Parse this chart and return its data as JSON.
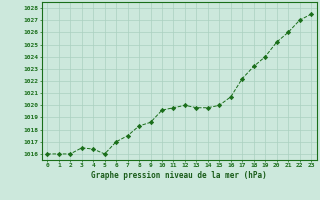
{
  "x": [
    0,
    1,
    2,
    3,
    4,
    5,
    6,
    7,
    8,
    9,
    10,
    11,
    12,
    13,
    14,
    15,
    16,
    17,
    18,
    19,
    20,
    21,
    22,
    23
  ],
  "y": [
    1016.0,
    1016.0,
    1016.0,
    1016.5,
    1016.4,
    1016.0,
    1017.0,
    1017.5,
    1018.3,
    1018.6,
    1019.6,
    1019.8,
    1020.0,
    1019.8,
    1019.8,
    1020.0,
    1020.7,
    1022.2,
    1023.2,
    1024.0,
    1025.2,
    1026.0,
    1027.0,
    1027.5
  ],
  "line_color": "#1a6e1a",
  "marker": "D",
  "marker_size": 2.2,
  "bg_color": "#cce8dc",
  "grid_color": "#aad0c0",
  "tick_label_color": "#1a6e1a",
  "title": "Graphe pression niveau de la mer (hPa)",
  "title_color": "#1a5c1a",
  "ylim": [
    1015.5,
    1028.5
  ],
  "yticks": [
    1016,
    1017,
    1018,
    1019,
    1020,
    1021,
    1022,
    1023,
    1024,
    1025,
    1026,
    1027,
    1028
  ],
  "xlim": [
    -0.5,
    23.5
  ],
  "xticks": [
    0,
    1,
    2,
    3,
    4,
    5,
    6,
    7,
    8,
    9,
    10,
    11,
    12,
    13,
    14,
    15,
    16,
    17,
    18,
    19,
    20,
    21,
    22,
    23
  ]
}
